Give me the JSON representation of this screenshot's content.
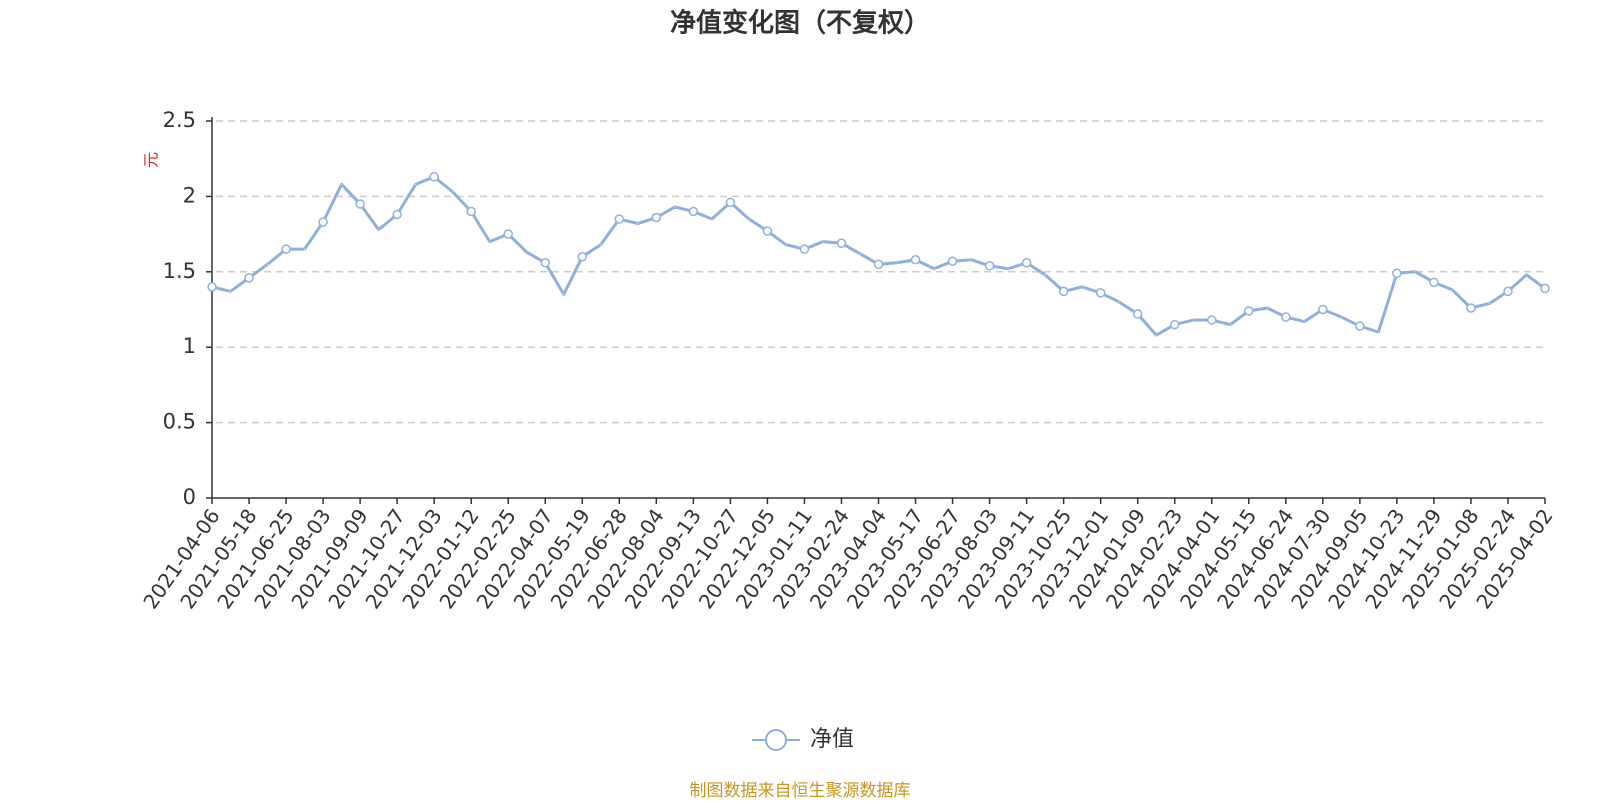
{
  "chart_data": {
    "type": "line",
    "title": "净值变化图（不复权）",
    "y_label": "元",
    "source": "制图数据来自恒生聚源数据库",
    "categories": [
      "2021-04-06",
      null,
      "2021-05-18",
      null,
      "2021-06-25",
      null,
      "2021-08-03",
      null,
      "2021-09-09",
      null,
      "2021-10-27",
      null,
      "2021-12-03",
      null,
      "2022-01-12",
      null,
      "2022-02-25",
      null,
      "2022-04-07",
      null,
      "2022-05-19",
      null,
      "2022-06-28",
      null,
      "2022-08-04",
      null,
      "2022-09-13",
      null,
      "2022-10-27",
      null,
      "2022-12-05",
      null,
      "2023-01-11",
      null,
      "2023-02-24",
      null,
      "2023-04-04",
      null,
      "2023-05-17",
      null,
      "2023-06-27",
      null,
      "2023-08-03",
      null,
      "2023-09-11",
      null,
      "2023-10-25",
      null,
      "2023-12-01",
      null,
      "2024-01-09",
      null,
      "2024-02-23",
      null,
      "2024-04-01",
      null,
      "2024-05-15",
      null,
      "2024-06-24",
      null,
      "2024-07-30",
      null,
      "2024-09-05",
      null,
      "2024-10-23",
      null,
      "2024-11-29",
      null,
      "2025-01-08",
      null,
      "2025-02-24",
      null,
      "2025-04-02"
    ],
    "series": [
      {
        "name": "净值",
        "color": "#8eb0dd",
        "values": [
          1.4,
          1.37,
          1.46,
          1.55,
          1.65,
          1.65,
          1.83,
          2.08,
          1.95,
          1.78,
          1.88,
          2.08,
          2.13,
          2.03,
          1.9,
          1.7,
          1.75,
          1.63,
          1.56,
          1.35,
          1.6,
          1.68,
          1.85,
          1.82,
          1.86,
          1.93,
          1.9,
          1.85,
          1.96,
          1.85,
          1.77,
          1.68,
          1.65,
          1.7,
          1.69,
          1.62,
          1.55,
          1.56,
          1.58,
          1.52,
          1.57,
          1.58,
          1.54,
          1.52,
          1.56,
          1.48,
          1.37,
          1.4,
          1.36,
          1.3,
          1.22,
          1.08,
          1.15,
          1.18,
          1.18,
          1.15,
          1.24,
          1.26,
          1.2,
          1.17,
          1.25,
          1.2,
          1.14,
          1.1,
          1.49,
          1.5,
          1.43,
          1.38,
          1.26,
          1.29,
          1.37,
          1.48,
          1.39
        ]
      }
    ],
    "ylim": [
      0,
      2.5
    ],
    "yticks": [
      0,
      0.5,
      1,
      1.5,
      2,
      2.5
    ],
    "grid": true
  }
}
